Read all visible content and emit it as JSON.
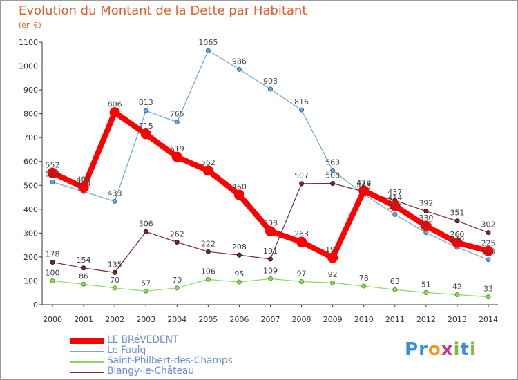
{
  "page": {
    "title": "Evolution du Montant de la Dette par Habitant",
    "subtitle": "(en €)"
  },
  "logo_text": "Proxiti",
  "chart_data": {
    "type": "line",
    "title": "Evolution du Montant de la Dette par Habitant",
    "subtitle": "(en €)",
    "x": [
      "2000",
      "2001",
      "2002",
      "2003",
      "2004",
      "2005",
      "2006",
      "2007",
      "2008",
      "2009",
      "2010",
      "2011",
      "2012",
      "2013",
      "2014"
    ],
    "ylim": [
      0,
      1100
    ],
    "yticks": [
      0,
      100,
      200,
      300,
      400,
      500,
      600,
      700,
      800,
      900,
      1000,
      1100
    ],
    "grid": false,
    "legend_position": "bottom-left",
    "series": [
      {
        "name": "LE BRéVEDENT",
        "color": "#ff0000",
        "emphasis": true,
        "values": [
          552,
          491,
          806,
          715,
          619,
          562,
          460,
          308,
          263,
          197,
          478,
          414,
          330,
          260,
          225
        ],
        "labels": [
          "552",
          "491",
          "806",
          "715",
          "619",
          "562",
          "460",
          "308",
          "263",
          "197",
          "478",
          "414",
          "330",
          "260",
          "225"
        ]
      },
      {
        "name": "Le Faulq",
        "color": "#6fa6d8",
        "values": [
          514,
          474,
          433,
          813,
          765,
          1065,
          986,
          903,
          816,
          563,
          463,
          378,
          302,
          240,
          189
        ],
        "labels": [
          "514",
          "474",
          "433",
          "813",
          "765",
          "1065",
          "986",
          "903",
          "816",
          "563",
          "463",
          "378",
          "302",
          "240",
          "189"
        ]
      },
      {
        "name": "Saint-Philbert-des-Champs",
        "color": "#8fd860",
        "values": [
          100,
          86,
          70,
          57,
          70,
          106,
          95,
          109,
          97,
          92,
          78,
          63,
          51,
          42,
          33
        ],
        "labels": [
          "100",
          "86",
          "70",
          "57",
          "70",
          "106",
          "95",
          "109",
          "97",
          "92",
          "78",
          "63",
          "51",
          "42",
          "33"
        ]
      },
      {
        "name": "Blangy-le-Château",
        "color": "#7a2a2a",
        "values": [
          178,
          154,
          135,
          306,
          262,
          222,
          208,
          191,
          507,
          508,
          474,
          437,
          392,
          351,
          302
        ],
        "labels": [
          "178",
          "154",
          "135",
          "306",
          "262",
          "222",
          "208",
          "191",
          "507",
          "508",
          "474",
          "437",
          "392",
          "351",
          "302"
        ]
      }
    ]
  }
}
